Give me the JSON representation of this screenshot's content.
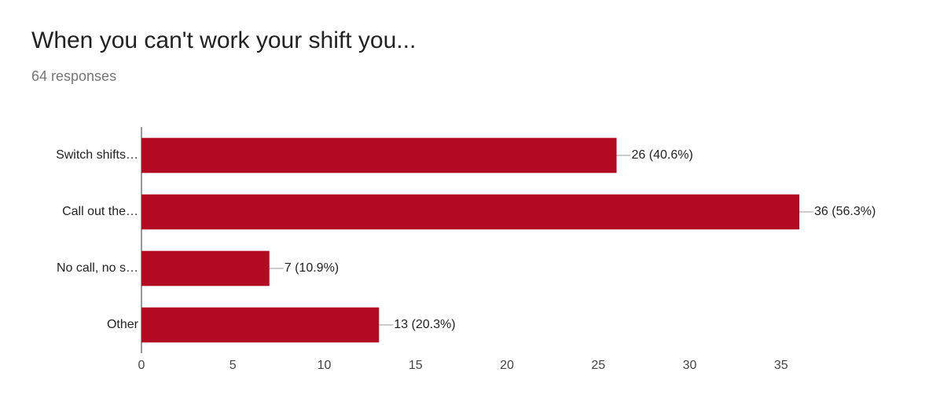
{
  "chart_data": {
    "type": "bar",
    "orientation": "horizontal",
    "title": "When you can't work your shift you...",
    "subtitle": "64 responses",
    "categories": [
      "Switch shifts…",
      "Call out the…",
      "No call, no s…",
      "Other"
    ],
    "values": [
      26,
      36,
      7,
      13
    ],
    "value_labels": [
      "26 (40.6%)",
      "36 (56.3%)",
      "7 (10.9%)",
      "13 (20.3%)"
    ],
    "color": "#b30b22",
    "xlim": [
      0,
      36
    ],
    "xticks": [
      0,
      5,
      10,
      15,
      20,
      25,
      30,
      35
    ],
    "grid": false
  }
}
